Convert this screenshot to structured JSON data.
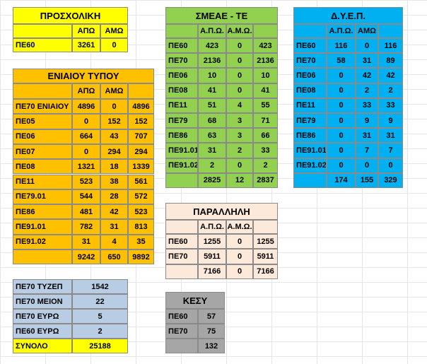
{
  "tables": [
    {
      "title": "ΠΡΟΣΧΟΛΙΚΗ",
      "headers": [
        "ΑΠΩ",
        "ΑΜΩ"
      ],
      "rows": [
        [
          "ΠΕ60",
          3261,
          0
        ]
      ]
    },
    {
      "title": "ΕΝΙΑΙΟΥ ΤΥΠΟΥ",
      "headers": [
        "ΑΠΩ",
        "ΑΜΩ"
      ],
      "rows": [
        [
          "ΠΕ70 ΕΝΙΑΙΟΥ",
          4896,
          0,
          4896
        ],
        [
          "ΠΕ05",
          0,
          152,
          152
        ],
        [
          "ΠΕ06",
          664,
          43,
          707
        ],
        [
          "ΠΕ07",
          0,
          294,
          294
        ],
        [
          "ΠΕ08",
          1321,
          18,
          1339
        ],
        [
          "ΠΕ11",
          523,
          38,
          561
        ],
        [
          "ΠΕ79.01",
          544,
          28,
          572
        ],
        [
          "ΠΕ86",
          481,
          42,
          523
        ],
        [
          "ΠΕ91.01",
          782,
          31,
          813
        ],
        [
          "ΠΕ91.02",
          31,
          4,
          35
        ]
      ],
      "total": [
        9242,
        650,
        9892
      ]
    },
    {
      "title": "ΣΜΕΑΕ - ΤΕ",
      "headers": [
        "Α.Π.Ω.",
        "Α.Μ.Ω."
      ],
      "rows": [
        [
          "ΠΕ60",
          423,
          0,
          423
        ],
        [
          "ΠΕ70",
          2136,
          0,
          2136
        ],
        [
          "ΠΕ06",
          10,
          0,
          10
        ],
        [
          "ΠΕ08",
          41,
          0,
          41
        ],
        [
          "ΠΕ11",
          51,
          4,
          55
        ],
        [
          "ΠΕ79",
          68,
          3,
          71
        ],
        [
          "ΠΕ86",
          63,
          3,
          66
        ],
        [
          "ΠΕ91.01",
          31,
          2,
          33
        ],
        [
          "ΠΕ91.02",
          2,
          0,
          2
        ]
      ],
      "total": [
        2825,
        12,
        2837
      ]
    },
    {
      "title": "Δ.Υ.Ε.Π.",
      "headers": [
        "Α.Π.Ω.",
        "ΑΜΩ"
      ],
      "rows": [
        [
          "ΠΕ60",
          116,
          0,
          116
        ],
        [
          "ΠΕ70",
          58,
          31,
          89
        ],
        [
          "ΠΕ06",
          0,
          42,
          42
        ],
        [
          "ΠΕ08",
          0,
          2,
          2
        ],
        [
          "ΠΕ11",
          0,
          33,
          33
        ],
        [
          "ΠΕ79",
          0,
          9,
          9
        ],
        [
          "ΠΕ86",
          0,
          31,
          31
        ],
        [
          "ΠΕ91.01",
          0,
          7,
          7
        ],
        [
          "ΠΕ91.02",
          0,
          0,
          0
        ]
      ],
      "total": [
        174,
        155,
        329
      ]
    },
    {
      "title": "ΠΑΡΑΛΛΗΛΗ",
      "headers": [
        "Α.Π.Ω.",
        "Α.Μ.Ω."
      ],
      "rows": [
        [
          "ΠΕ60",
          1255,
          0,
          1255
        ],
        [
          "ΠΕ70",
          5911,
          0,
          5911
        ]
      ],
      "total": [
        7166,
        0,
        7166
      ]
    },
    {
      "rows": [
        [
          "ΠΕ70 ΤΥΖΕΠ",
          1542
        ],
        [
          "ΠΕ70 ΜΕΙΟΝ",
          22
        ],
        [
          "ΠΕ70 ΕΥΡΩ",
          5
        ],
        [
          "ΠΕ60 ΕΥΡΩ",
          2
        ],
        [
          "ΣΥΝΟΛΟ",
          25188
        ]
      ]
    },
    {
      "title": "ΚΕΣΥ",
      "rows": [
        [
          "ΠΕ60",
          57
        ],
        [
          "ΠΕ70",
          75
        ]
      ],
      "total": [
        132
      ]
    }
  ]
}
